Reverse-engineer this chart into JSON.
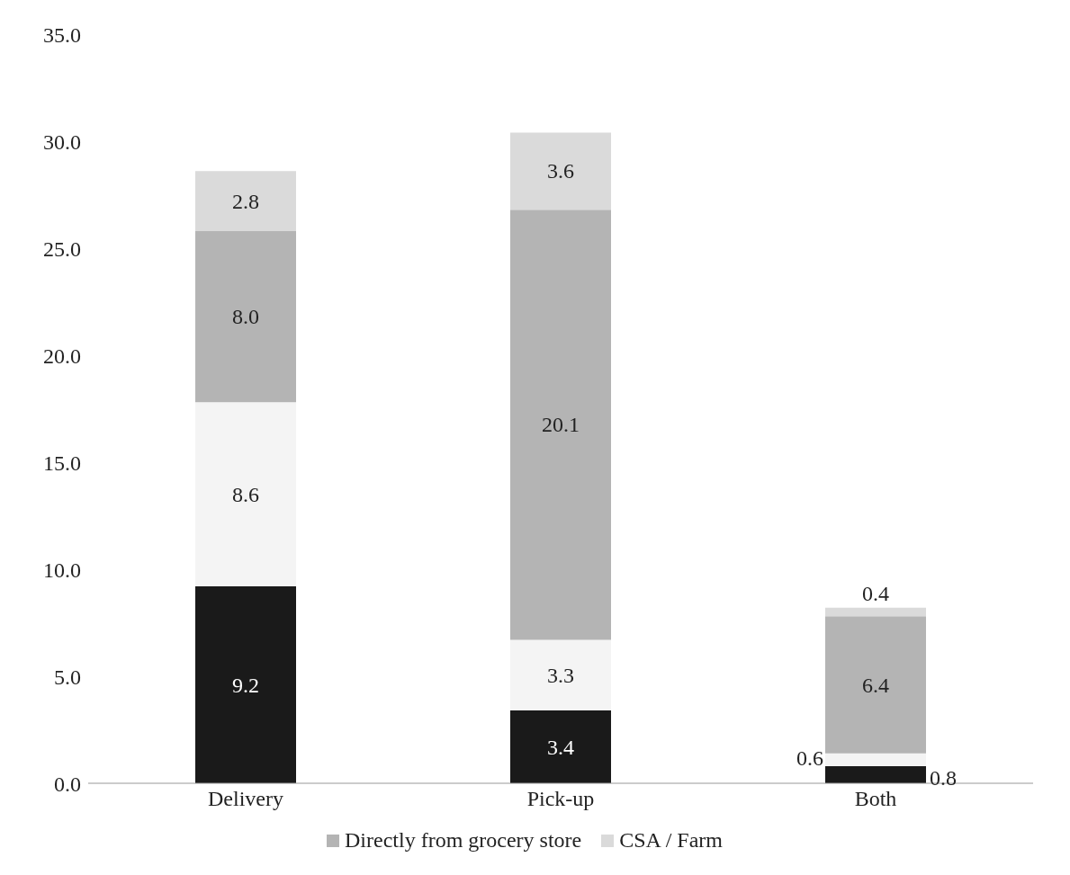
{
  "chart_data": {
    "type": "bar",
    "stacked": true,
    "categories": [
      "Delivery",
      "Pick-up",
      "Both"
    ],
    "series": [
      {
        "color": "#1a1a1a",
        "values": [
          9.2,
          3.4,
          0.8
        ],
        "value_labels": [
          "9.2",
          "3.4",
          "0.8"
        ]
      },
      {
        "color": "#f4f4f4",
        "values": [
          8.6,
          3.3,
          0.6
        ],
        "value_labels": [
          "8.6",
          "3.3",
          "0.6"
        ]
      },
      {
        "name": "Directly from grocery store",
        "color": "#b4b4b4",
        "values": [
          8.0,
          20.1,
          6.4
        ],
        "value_labels": [
          "8.0",
          "20.1",
          "6.4"
        ]
      },
      {
        "name": "CSA / Farm",
        "color": "#dadada",
        "values": [
          2.8,
          3.6,
          0.4
        ],
        "value_labels": [
          "2.8",
          "3.6",
          "0.4"
        ]
      }
    ],
    "ylim": [
      0,
      35
    ],
    "yticks": [
      {
        "value": 0,
        "label": "0.0"
      },
      {
        "value": 5,
        "label": "5.0"
      },
      {
        "value": 10,
        "label": "10.0"
      },
      {
        "value": 15,
        "label": "15.0"
      },
      {
        "value": 20,
        "label": "20.0"
      },
      {
        "value": 25,
        "label": "25.0"
      },
      {
        "value": 30,
        "label": "30.0"
      },
      {
        "value": 35,
        "label": "35.0"
      }
    ],
    "grid": false,
    "legend": "bottom"
  }
}
